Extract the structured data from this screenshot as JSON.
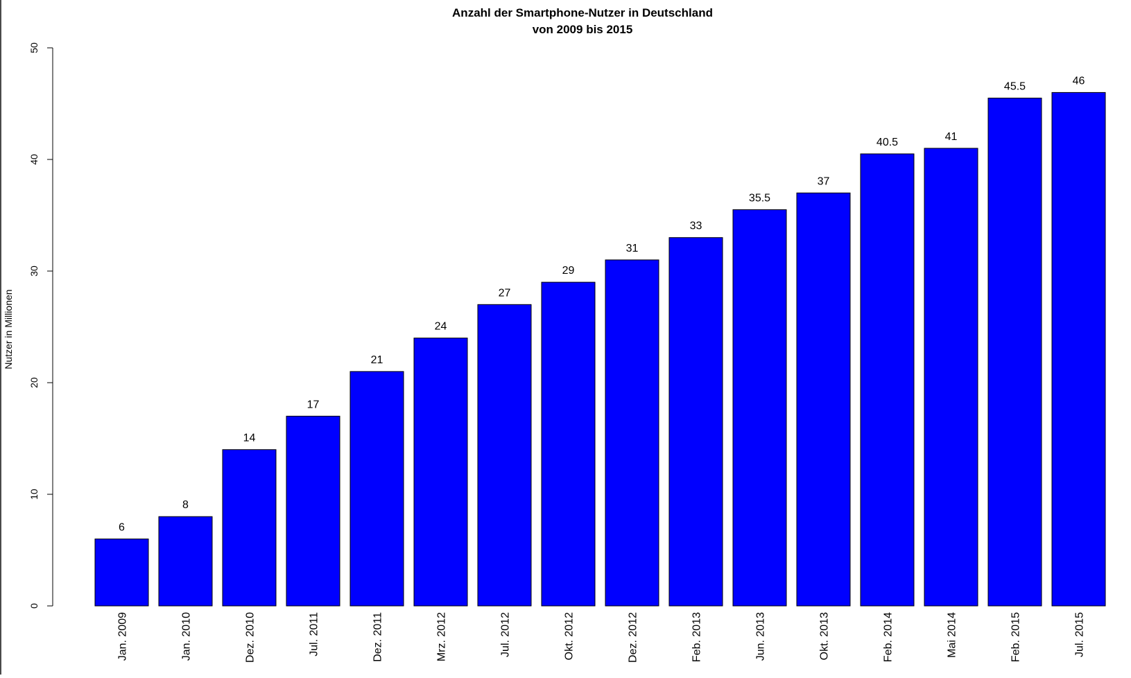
{
  "chart_data": {
    "type": "bar",
    "title": "Anzahl der Smartphone-Nutzer in Deutschland",
    "subtitle": "von 2009 bis 2015",
    "xlabel": "",
    "ylabel": "Nutzer in Millionen",
    "ylim": [
      0,
      50
    ],
    "yticks": [
      0,
      10,
      20,
      30,
      40,
      50
    ],
    "grid": false,
    "legend": "none",
    "bar_color": "#0000ff",
    "categories": [
      "Jan. 2009",
      "Jan. 2010",
      "Dez. 2010",
      "Jul. 2011",
      "Dez. 2011",
      "Mrz. 2012",
      "Jul. 2012",
      "Okt. 2012",
      "Dez. 2012",
      "Feb. 2013",
      "Jun. 2013",
      "Okt. 2013",
      "Feb. 2014",
      "Mai 2014",
      "Feb. 2015",
      "Jul. 2015"
    ],
    "values": [
      6,
      8,
      14,
      17,
      21,
      24,
      27,
      29,
      31,
      33,
      35.5,
      37,
      40.5,
      41,
      45.5,
      46
    ],
    "value_labels": [
      "6",
      "8",
      "14",
      "17",
      "21",
      "24",
      "27",
      "29",
      "31",
      "33",
      "35.5",
      "37",
      "40.5",
      "41",
      "45.5",
      "46"
    ]
  }
}
